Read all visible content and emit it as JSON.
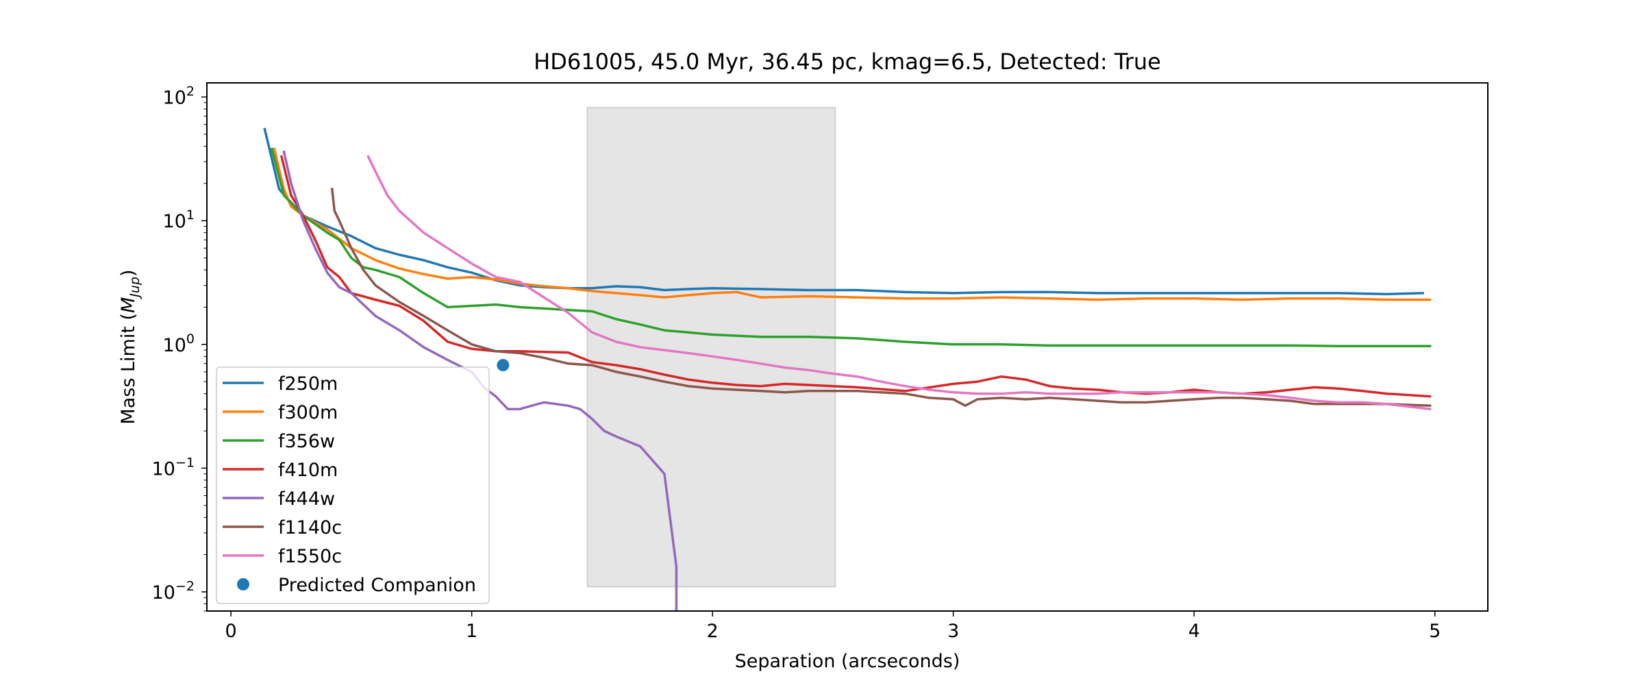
{
  "chart_data": {
    "type": "line",
    "title": "HD61005, 45.0 Myr, 36.45 pc, kmag=6.5, Detected: True",
    "xlabel": "Separation (arcseconds)",
    "ylabel": "Mass Limit (M_Jup)",
    "ylabel_main": "Mass Limit (",
    "ylabel_sym": "M",
    "ylabel_sub": "Jup",
    "ylabel_close": ")",
    "xlim": [
      -0.1,
      5.22
    ],
    "ylim": [
      0.007,
      130
    ],
    "yscale": "log",
    "x_ticks": [
      0,
      1,
      2,
      3,
      4,
      5
    ],
    "x_tick_labels": [
      "0",
      "1",
      "2",
      "3",
      "4",
      "5"
    ],
    "y_ticks": [
      0.01,
      0.1,
      1,
      10,
      100
    ],
    "y_tick_bases": [
      "10",
      "10",
      "10",
      "10",
      "10"
    ],
    "y_tick_exps": [
      "−2",
      "−1",
      "0",
      "1",
      "2"
    ],
    "grid": false,
    "legend_position": "lower-left",
    "shaded_region": {
      "x": [
        1.48,
        2.51
      ],
      "y": [
        0.011,
        82
      ],
      "color": "#e5e5e5"
    },
    "series": [
      {
        "name": "f250m",
        "color": "#1f77b4",
        "x": [
          0.14,
          0.2,
          0.25,
          0.3,
          0.4,
          0.5,
          0.6,
          0.7,
          0.8,
          0.9,
          1.0,
          1.1,
          1.2,
          1.3,
          1.4,
          1.5,
          1.6,
          1.7,
          1.8,
          1.9,
          2.0,
          2.2,
          2.4,
          2.6,
          2.8,
          3.0,
          3.2,
          3.4,
          3.6,
          3.8,
          4.0,
          4.2,
          4.4,
          4.6,
          4.8,
          4.95
        ],
        "y": [
          55,
          18,
          14,
          11,
          9,
          7.5,
          6,
          5.3,
          4.8,
          4.2,
          3.8,
          3.3,
          3.0,
          2.9,
          2.85,
          2.85,
          2.95,
          2.9,
          2.75,
          2.8,
          2.85,
          2.8,
          2.75,
          2.75,
          2.65,
          2.6,
          2.65,
          2.65,
          2.6,
          2.6,
          2.6,
          2.6,
          2.6,
          2.6,
          2.55,
          2.6
        ]
      },
      {
        "name": "f300m",
        "color": "#ff7f0e",
        "x": [
          0.18,
          0.22,
          0.25,
          0.3,
          0.4,
          0.5,
          0.6,
          0.7,
          0.8,
          0.9,
          1.0,
          1.1,
          1.2,
          1.3,
          1.4,
          1.5,
          1.6,
          1.7,
          1.8,
          1.9,
          2.0,
          2.1,
          2.2,
          2.4,
          2.6,
          2.8,
          3.0,
          3.2,
          3.4,
          3.6,
          3.8,
          4.0,
          4.2,
          4.4,
          4.6,
          4.8,
          4.98
        ],
        "y": [
          38,
          18,
          13,
          11,
          8.5,
          6,
          4.8,
          4.1,
          3.7,
          3.4,
          3.5,
          3.35,
          3.1,
          2.95,
          2.85,
          2.7,
          2.6,
          2.5,
          2.4,
          2.5,
          2.6,
          2.65,
          2.4,
          2.45,
          2.4,
          2.35,
          2.35,
          2.4,
          2.35,
          2.3,
          2.35,
          2.35,
          2.3,
          2.35,
          2.35,
          2.3,
          2.3
        ]
      },
      {
        "name": "f356w",
        "color": "#2ca02c",
        "x": [
          0.17,
          0.22,
          0.3,
          0.4,
          0.45,
          0.5,
          0.55,
          0.6,
          0.7,
          0.8,
          0.9,
          1.0,
          1.1,
          1.2,
          1.3,
          1.4,
          1.5,
          1.6,
          1.7,
          1.8,
          1.9,
          2.0,
          2.2,
          2.4,
          2.6,
          2.8,
          3.0,
          3.2,
          3.4,
          3.6,
          3.8,
          4.0,
          4.2,
          4.4,
          4.6,
          4.8,
          4.98
        ],
        "y": [
          38,
          16,
          11,
          8,
          7,
          5,
          4.2,
          4,
          3.5,
          2.6,
          2.0,
          2.05,
          2.1,
          2.0,
          1.95,
          1.9,
          1.85,
          1.6,
          1.45,
          1.3,
          1.25,
          1.2,
          1.15,
          1.15,
          1.12,
          1.05,
          1.0,
          1.0,
          0.98,
          0.98,
          0.98,
          0.98,
          0.98,
          0.98,
          0.97,
          0.97,
          0.97
        ]
      },
      {
        "name": "f410m",
        "color": "#d62728",
        "x": [
          0.21,
          0.25,
          0.3,
          0.35,
          0.4,
          0.45,
          0.5,
          0.6,
          0.7,
          0.8,
          0.9,
          1.0,
          1.1,
          1.2,
          1.3,
          1.4,
          1.5,
          1.6,
          1.7,
          1.8,
          1.9,
          2.0,
          2.1,
          2.2,
          2.3,
          2.4,
          2.5,
          2.6,
          2.8,
          3.0,
          3.1,
          3.2,
          3.3,
          3.4,
          3.5,
          3.6,
          3.7,
          3.8,
          3.9,
          4.0,
          4.1,
          4.2,
          4.3,
          4.4,
          4.5,
          4.6,
          4.7,
          4.8,
          4.98
        ],
        "y": [
          33,
          16,
          11,
          7,
          4.2,
          3.5,
          2.6,
          2.3,
          2.05,
          1.55,
          1.05,
          0.92,
          0.88,
          0.88,
          0.87,
          0.86,
          0.72,
          0.68,
          0.63,
          0.57,
          0.52,
          0.49,
          0.47,
          0.46,
          0.48,
          0.47,
          0.46,
          0.45,
          0.42,
          0.48,
          0.5,
          0.55,
          0.52,
          0.46,
          0.44,
          0.43,
          0.41,
          0.4,
          0.41,
          0.43,
          0.41,
          0.4,
          0.41,
          0.43,
          0.45,
          0.44,
          0.42,
          0.4,
          0.38
        ]
      },
      {
        "name": "f444w",
        "color": "#9467bd",
        "x": [
          0.22,
          0.25,
          0.3,
          0.35,
          0.4,
          0.45,
          0.5,
          0.55,
          0.6,
          0.7,
          0.8,
          0.9,
          1.0,
          1.05,
          1.1,
          1.15,
          1.2,
          1.25,
          1.3,
          1.4,
          1.45,
          1.5,
          1.55,
          1.6,
          1.7,
          1.8,
          1.85,
          1.85
        ],
        "y": [
          36,
          20,
          10,
          6,
          3.8,
          2.9,
          2.6,
          2.1,
          1.7,
          1.3,
          0.95,
          0.75,
          0.6,
          0.45,
          0.38,
          0.3,
          0.3,
          0.32,
          0.34,
          0.32,
          0.3,
          0.25,
          0.2,
          0.18,
          0.15,
          0.09,
          0.016,
          0.006
        ]
      },
      {
        "name": "f1140c",
        "color": "#8c564b",
        "x": [
          0.42,
          0.43,
          0.45,
          0.5,
          0.55,
          0.6,
          0.7,
          0.8,
          0.9,
          1.0,
          1.1,
          1.2,
          1.3,
          1.4,
          1.5,
          1.6,
          1.7,
          1.8,
          1.9,
          2.0,
          2.1,
          2.2,
          2.3,
          2.4,
          2.5,
          2.6,
          2.7,
          2.8,
          2.9,
          3.0,
          3.05,
          3.1,
          3.2,
          3.3,
          3.4,
          3.5,
          3.6,
          3.7,
          3.8,
          3.9,
          4.0,
          4.1,
          4.2,
          4.3,
          4.4,
          4.5,
          4.6,
          4.7,
          4.8,
          4.98
        ],
        "y": [
          18,
          12,
          10,
          6,
          4,
          3,
          2.2,
          1.7,
          1.3,
          1.0,
          0.88,
          0.85,
          0.78,
          0.7,
          0.68,
          0.6,
          0.55,
          0.5,
          0.46,
          0.44,
          0.43,
          0.42,
          0.41,
          0.42,
          0.42,
          0.42,
          0.41,
          0.4,
          0.37,
          0.36,
          0.32,
          0.36,
          0.37,
          0.36,
          0.37,
          0.36,
          0.35,
          0.34,
          0.34,
          0.35,
          0.36,
          0.37,
          0.37,
          0.36,
          0.35,
          0.33,
          0.33,
          0.33,
          0.33,
          0.32
        ]
      },
      {
        "name": "f1550c",
        "color": "#e377c2",
        "x": [
          0.57,
          0.6,
          0.65,
          0.7,
          0.8,
          0.9,
          1.0,
          1.1,
          1.2,
          1.3,
          1.4,
          1.5,
          1.6,
          1.7,
          1.8,
          1.9,
          2.0,
          2.1,
          2.2,
          2.3,
          2.4,
          2.5,
          2.6,
          2.7,
          2.8,
          2.9,
          3.0,
          3.1,
          3.2,
          3.3,
          3.4,
          3.5,
          3.6,
          3.7,
          3.8,
          3.9,
          4.0,
          4.1,
          4.2,
          4.3,
          4.4,
          4.5,
          4.6,
          4.7,
          4.8,
          4.98
        ],
        "y": [
          33,
          25,
          16,
          12,
          8,
          6,
          4.5,
          3.5,
          3.2,
          2.4,
          1.8,
          1.25,
          1.05,
          0.95,
          0.9,
          0.85,
          0.8,
          0.75,
          0.7,
          0.65,
          0.62,
          0.58,
          0.55,
          0.5,
          0.46,
          0.43,
          0.41,
          0.4,
          0.4,
          0.41,
          0.4,
          0.4,
          0.4,
          0.41,
          0.41,
          0.41,
          0.41,
          0.41,
          0.4,
          0.39,
          0.37,
          0.35,
          0.34,
          0.34,
          0.33,
          0.3
        ]
      }
    ],
    "scatter": {
      "name": "Predicted Companion",
      "color": "#1f77b4",
      "x": [
        1.13
      ],
      "y": [
        0.68
      ]
    }
  }
}
